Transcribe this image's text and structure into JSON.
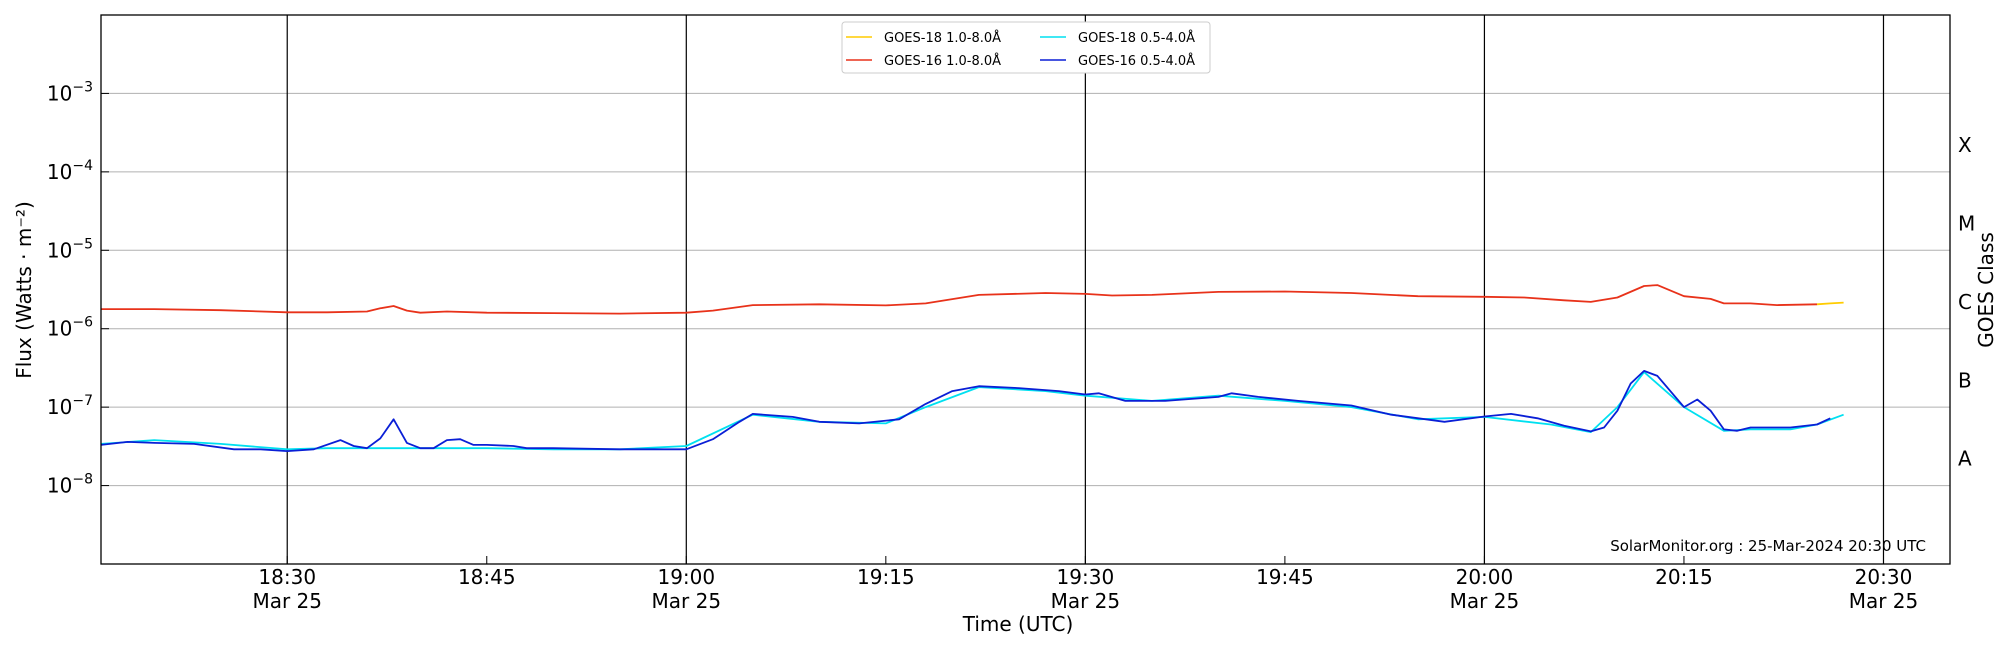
{
  "chart_data": {
    "type": "line",
    "title": "",
    "xlabel": "Time (UTC)",
    "ylabel": "Flux (Watts · m⁻²)",
    "y2label": "GOES Class",
    "yscale": "log",
    "ylim": [
      1e-09,
      0.01
    ],
    "xlim": [
      "2024-03-25 18:16",
      "2024-03-25 20:35"
    ],
    "grid": "horizontal",
    "legend_placement": "top-center",
    "watermark": "SolarMonitor.org : 25-Mar-2024 20:30 UTC",
    "x_ticks": [
      {
        "time": "18:30",
        "date": "Mar 25"
      },
      {
        "time": "18:45",
        "date": ""
      },
      {
        "time": "19:00",
        "date": "Mar 25"
      },
      {
        "time": "19:15",
        "date": ""
      },
      {
        "time": "19:30",
        "date": "Mar 25"
      },
      {
        "time": "19:45",
        "date": ""
      },
      {
        "time": "20:00",
        "date": "Mar 25"
      },
      {
        "time": "20:15",
        "date": ""
      },
      {
        "time": "20:30",
        "date": "Mar 25"
      }
    ],
    "vertical_lines": [
      "18:30",
      "19:00",
      "19:30",
      "20:00",
      "20:30"
    ],
    "y_ticks": [
      {
        "exp": "-3",
        "value": 0.001
      },
      {
        "exp": "-4",
        "value": 0.0001
      },
      {
        "exp": "-5",
        "value": 1e-05
      },
      {
        "exp": "-6",
        "value": 1e-06
      },
      {
        "exp": "-7",
        "value": 1e-07
      },
      {
        "exp": "-8",
        "value": 1e-08
      }
    ],
    "goes_classes": [
      {
        "label": "X",
        "value": 0.00022
      },
      {
        "label": "M",
        "value": 2.2e-05
      },
      {
        "label": "C",
        "value": 2.2e-06
      },
      {
        "label": "B",
        "value": 2.2e-07
      },
      {
        "label": "A",
        "value": 2.2e-08
      }
    ],
    "series": [
      {
        "name": "GOES-18 1.0-8.0Å",
        "color": "#ffcc00",
        "points": [
          [
            "20:25",
            2.05e-06
          ],
          [
            "20:26",
            2.1e-06
          ],
          [
            "20:27",
            2.15e-06
          ]
        ]
      },
      {
        "name": "GOES-16 1.0-8.0Å",
        "color": "#e8321a",
        "points": [
          [
            "18:16",
            1.78e-06
          ],
          [
            "18:20",
            1.78e-06
          ],
          [
            "18:25",
            1.72e-06
          ],
          [
            "18:30",
            1.62e-06
          ],
          [
            "18:33",
            1.62e-06
          ],
          [
            "18:36",
            1.66e-06
          ],
          [
            "18:37",
            1.82e-06
          ],
          [
            "18:38",
            1.95e-06
          ],
          [
            "18:39",
            1.7e-06
          ],
          [
            "18:40",
            1.6e-06
          ],
          [
            "18:42",
            1.66e-06
          ],
          [
            "18:45",
            1.6e-06
          ],
          [
            "18:50",
            1.58e-06
          ],
          [
            "18:55",
            1.56e-06
          ],
          [
            "19:00",
            1.6e-06
          ],
          [
            "19:02",
            1.7e-06
          ],
          [
            "19:05",
            2e-06
          ],
          [
            "19:10",
            2.05e-06
          ],
          [
            "19:15",
            1.98e-06
          ],
          [
            "19:18",
            2.1e-06
          ],
          [
            "19:22",
            2.7e-06
          ],
          [
            "19:27",
            2.85e-06
          ],
          [
            "19:30",
            2.78e-06
          ],
          [
            "19:32",
            2.65e-06
          ],
          [
            "19:35",
            2.7e-06
          ],
          [
            "19:40",
            2.95e-06
          ],
          [
            "19:45",
            2.98e-06
          ],
          [
            "19:50",
            2.85e-06
          ],
          [
            "19:55",
            2.6e-06
          ],
          [
            "20:00",
            2.55e-06
          ],
          [
            "20:03",
            2.5e-06
          ],
          [
            "20:06",
            2.3e-06
          ],
          [
            "20:08",
            2.2e-06
          ],
          [
            "20:10",
            2.5e-06
          ],
          [
            "20:12",
            3.5e-06
          ],
          [
            "20:13",
            3.6e-06
          ],
          [
            "20:15",
            2.6e-06
          ],
          [
            "20:17",
            2.4e-06
          ],
          [
            "20:18",
            2.1e-06
          ],
          [
            "20:20",
            2.1e-06
          ],
          [
            "20:22",
            2e-06
          ],
          [
            "20:25",
            2.05e-06
          ]
        ]
      },
      {
        "name": "GOES-18 0.5-4.0Å",
        "color": "#00e0f0",
        "points": [
          [
            "18:16",
            3.4e-08
          ],
          [
            "18:20",
            3.8e-08
          ],
          [
            "18:25",
            3.4e-08
          ],
          [
            "18:30",
            2.9e-08
          ],
          [
            "18:33",
            3e-08
          ],
          [
            "18:40",
            3e-08
          ],
          [
            "18:45",
            3e-08
          ],
          [
            "18:50",
            2.9e-08
          ],
          [
            "18:55",
            2.9e-08
          ],
          [
            "19:00",
            3.2e-08
          ],
          [
            "19:05",
            8e-08
          ],
          [
            "19:10",
            6.5e-08
          ],
          [
            "19:15",
            6.2e-08
          ],
          [
            "19:18",
            1e-07
          ],
          [
            "19:22",
            1.8e-07
          ],
          [
            "19:27",
            1.6e-07
          ],
          [
            "19:30",
            1.4e-07
          ],
          [
            "19:35",
            1.2e-07
          ],
          [
            "19:40",
            1.4e-07
          ],
          [
            "19:45",
            1.2e-07
          ],
          [
            "19:50",
            1e-07
          ],
          [
            "19:55",
            7e-08
          ],
          [
            "20:00",
            7.5e-08
          ],
          [
            "20:05",
            6e-08
          ],
          [
            "20:08",
            4.8e-08
          ],
          [
            "20:10",
            1e-07
          ],
          [
            "20:12",
            2.8e-07
          ],
          [
            "20:15",
            1e-07
          ],
          [
            "20:18",
            5e-08
          ],
          [
            "20:20",
            5.2e-08
          ],
          [
            "20:23",
            5.2e-08
          ],
          [
            "20:25",
            6e-08
          ],
          [
            "20:27",
            8e-08
          ]
        ]
      },
      {
        "name": "GOES-16 0.5-4.0Å",
        "color": "#0a1fd6",
        "points": [
          [
            "18:16",
            3.3e-08
          ],
          [
            "18:18",
            3.6e-08
          ],
          [
            "18:20",
            3.5e-08
          ],
          [
            "18:23",
            3.4e-08
          ],
          [
            "18:26",
            2.9e-08
          ],
          [
            "18:28",
            2.9e-08
          ],
          [
            "18:30",
            2.75e-08
          ],
          [
            "18:32",
            2.9e-08
          ],
          [
            "18:34",
            3.8e-08
          ],
          [
            "18:35",
            3.2e-08
          ],
          [
            "18:36",
            3e-08
          ],
          [
            "18:37",
            4e-08
          ],
          [
            "18:38",
            7e-08
          ],
          [
            "18:39",
            3.5e-08
          ],
          [
            "18:40",
            3e-08
          ],
          [
            "18:41",
            3e-08
          ],
          [
            "18:42",
            3.8e-08
          ],
          [
            "18:43",
            3.9e-08
          ],
          [
            "18:44",
            3.3e-08
          ],
          [
            "18:45",
            3.3e-08
          ],
          [
            "18:47",
            3.2e-08
          ],
          [
            "18:48",
            3e-08
          ],
          [
            "18:50",
            3e-08
          ],
          [
            "18:55",
            2.9e-08
          ],
          [
            "19:00",
            2.9e-08
          ],
          [
            "19:02",
            3.9e-08
          ],
          [
            "19:04",
            6.5e-08
          ],
          [
            "19:05",
            8.2e-08
          ],
          [
            "19:08",
            7.5e-08
          ],
          [
            "19:10",
            6.5e-08
          ],
          [
            "19:13",
            6.2e-08
          ],
          [
            "19:16",
            7e-08
          ],
          [
            "19:18",
            1.1e-07
          ],
          [
            "19:20",
            1.6e-07
          ],
          [
            "19:22",
            1.85e-07
          ],
          [
            "19:25",
            1.75e-07
          ],
          [
            "19:28",
            1.6e-07
          ],
          [
            "19:30",
            1.45e-07
          ],
          [
            "19:31",
            1.5e-07
          ],
          [
            "19:33",
            1.2e-07
          ],
          [
            "19:36",
            1.2e-07
          ],
          [
            "19:40",
            1.35e-07
          ],
          [
            "19:41",
            1.5e-07
          ],
          [
            "19:43",
            1.35e-07
          ],
          [
            "19:46",
            1.2e-07
          ],
          [
            "19:50",
            1.05e-07
          ],
          [
            "19:53",
            8e-08
          ],
          [
            "19:57",
            6.5e-08
          ],
          [
            "20:00",
            7.6e-08
          ],
          [
            "20:02",
            8.2e-08
          ],
          [
            "20:04",
            7.2e-08
          ],
          [
            "20:06",
            5.8e-08
          ],
          [
            "20:08",
            4.9e-08
          ],
          [
            "20:09",
            5.5e-08
          ],
          [
            "20:10",
            9e-08
          ],
          [
            "20:11",
            2e-07
          ],
          [
            "20:12",
            2.9e-07
          ],
          [
            "20:13",
            2.5e-07
          ],
          [
            "20:15",
            1e-07
          ],
          [
            "20:16",
            1.25e-07
          ],
          [
            "20:17",
            9e-08
          ],
          [
            "20:18",
            5.2e-08
          ],
          [
            "20:19",
            5e-08
          ],
          [
            "20:20",
            5.5e-08
          ],
          [
            "20:23",
            5.5e-08
          ],
          [
            "20:25",
            6e-08
          ],
          [
            "20:26",
            7.2e-08
          ]
        ]
      }
    ]
  }
}
